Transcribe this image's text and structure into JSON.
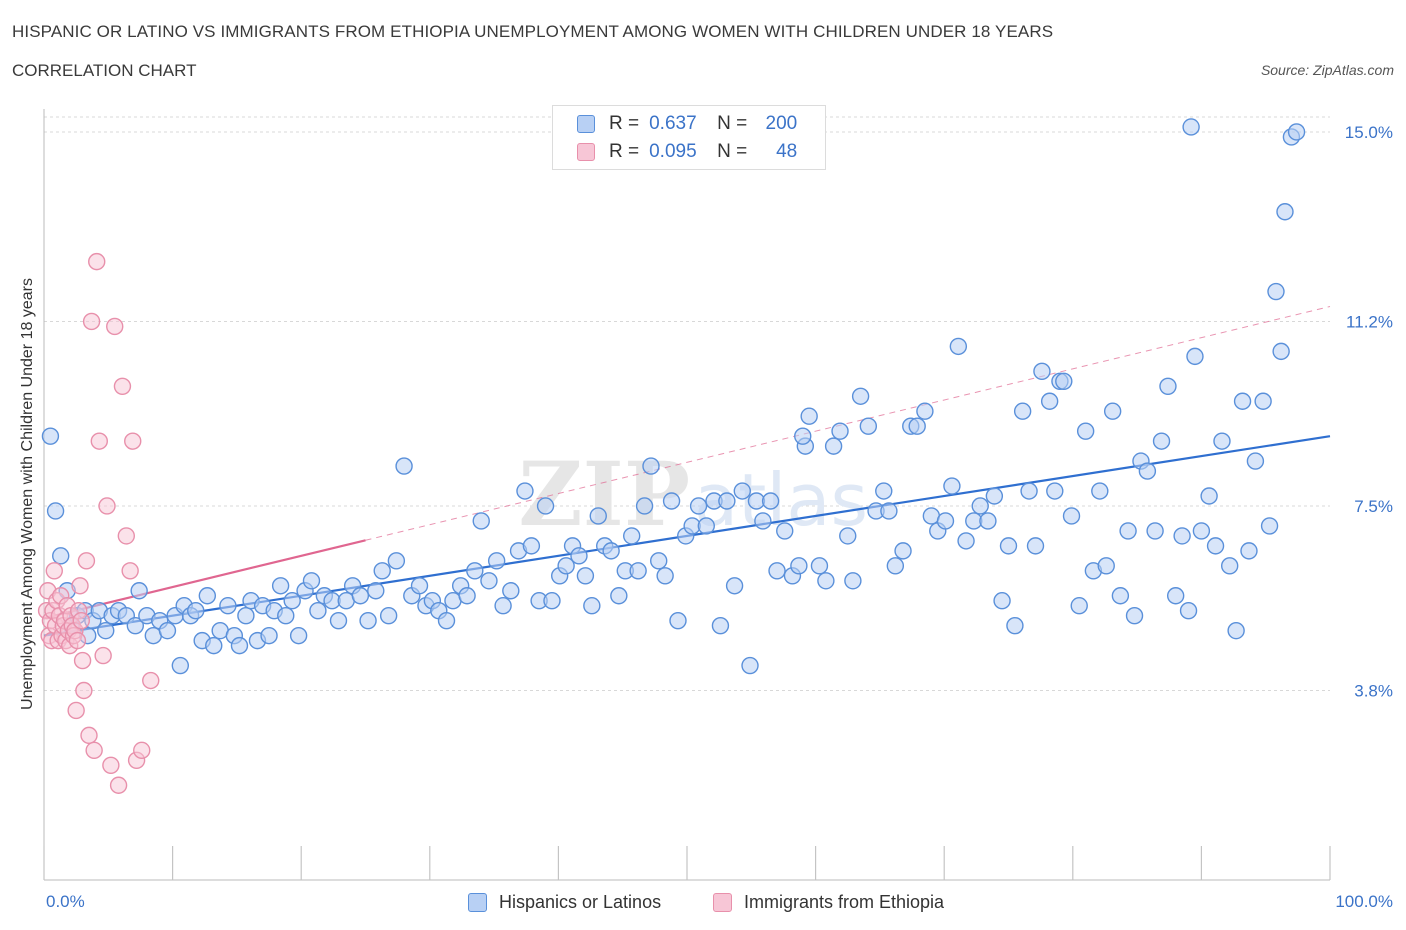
{
  "header": {
    "title": "HISPANIC OR LATINO VS IMMIGRANTS FROM ETHIOPIA UNEMPLOYMENT AMONG WOMEN WITH CHILDREN UNDER 18 YEARS",
    "subtitle": "CORRELATION CHART",
    "source": "Source: ZipAtlas.com"
  },
  "legend_top": {
    "rows": [
      {
        "r_label": "R =",
        "r_value": "0.637",
        "n_label": "N =",
        "n_value": "200"
      },
      {
        "r_label": "R =",
        "r_value": "0.095",
        "n_label": "N =",
        "n_value": "48"
      }
    ]
  },
  "legend_bottom": [
    "Hispanics or Latinos",
    "Immigrants from Ethiopia"
  ],
  "colors": {
    "blue_fill": "#b8d0f4",
    "blue_stroke": "#5a90da",
    "blue_line": "#2f6fd0",
    "pink_fill": "#f7c6d6",
    "pink_stroke": "#e890ab",
    "pink_line": "#e06690",
    "tick_text": "#3b73c8",
    "grid": "#d8d8d8"
  },
  "chart_data": {
    "type": "scatter",
    "title": "HISPANIC OR LATINO VS IMMIGRANTS FROM ETHIOPIA UNEMPLOYMENT AMONG WOMEN WITH CHILDREN UNDER 18 YEARS",
    "xlabel": "",
    "ylabel": "Unemployment Among Women with Children Under 18 years",
    "x_tick_labels": [
      "0.0%",
      "100.0%"
    ],
    "y_tick_labels": [
      "3.8%",
      "7.5%",
      "11.2%",
      "15.0%"
    ],
    "y_ticks": [
      3.8,
      7.5,
      11.2,
      15.0
    ],
    "xlim": [
      0,
      100
    ],
    "ylim": [
      0,
      15.3
    ],
    "grid": true,
    "legend_placement": "bottom-center",
    "watermark": "ZIPatlas",
    "series": [
      {
        "name": "Hispanics or Latinos",
        "R": 0.637,
        "N": 200,
        "trend": {
          "x0": 0,
          "y0": 4.9,
          "x1": 100,
          "y1": 8.9,
          "style": "solid"
        },
        "points": [
          [
            0.5,
            8.9
          ],
          [
            0.9,
            7.4
          ],
          [
            1.3,
            6.5
          ],
          [
            1.8,
            5.8
          ],
          [
            2.1,
            5.1
          ],
          [
            2.6,
            5.3
          ],
          [
            3.2,
            5.4
          ],
          [
            3.4,
            4.9
          ],
          [
            3.8,
            5.2
          ],
          [
            4.3,
            5.4
          ],
          [
            4.8,
            5.0
          ],
          [
            5.3,
            5.3
          ],
          [
            5.8,
            5.4
          ],
          [
            6.4,
            5.3
          ],
          [
            7.1,
            5.1
          ],
          [
            7.4,
            5.8
          ],
          [
            8.0,
            5.3
          ],
          [
            8.5,
            4.9
          ],
          [
            9.0,
            5.2
          ],
          [
            9.6,
            5.0
          ],
          [
            10.2,
            5.3
          ],
          [
            10.6,
            4.3
          ],
          [
            10.9,
            5.5
          ],
          [
            11.4,
            5.3
          ],
          [
            11.8,
            5.4
          ],
          [
            12.3,
            4.8
          ],
          [
            12.7,
            5.7
          ],
          [
            13.2,
            4.7
          ],
          [
            13.7,
            5.0
          ],
          [
            14.3,
            5.5
          ],
          [
            14.8,
            4.9
          ],
          [
            15.2,
            4.7
          ],
          [
            15.7,
            5.3
          ],
          [
            16.1,
            5.6
          ],
          [
            16.6,
            4.8
          ],
          [
            17.0,
            5.5
          ],
          [
            17.5,
            4.9
          ],
          [
            17.9,
            5.4
          ],
          [
            18.4,
            5.9
          ],
          [
            18.8,
            5.3
          ],
          [
            19.3,
            5.6
          ],
          [
            19.8,
            4.9
          ],
          [
            20.3,
            5.8
          ],
          [
            20.8,
            6.0
          ],
          [
            21.3,
            5.4
          ],
          [
            21.8,
            5.7
          ],
          [
            22.4,
            5.6
          ],
          [
            22.9,
            5.2
          ],
          [
            23.5,
            5.6
          ],
          [
            24.0,
            5.9
          ],
          [
            24.6,
            5.7
          ],
          [
            25.2,
            5.2
          ],
          [
            25.8,
            5.8
          ],
          [
            26.3,
            6.2
          ],
          [
            26.8,
            5.3
          ],
          [
            27.4,
            6.4
          ],
          [
            28.0,
            8.3
          ],
          [
            28.6,
            5.7
          ],
          [
            29.2,
            5.9
          ],
          [
            29.7,
            5.5
          ],
          [
            30.2,
            5.6
          ],
          [
            30.7,
            5.4
          ],
          [
            31.3,
            5.2
          ],
          [
            31.8,
            5.6
          ],
          [
            32.4,
            5.9
          ],
          [
            32.9,
            5.7
          ],
          [
            33.5,
            6.2
          ],
          [
            34.0,
            7.2
          ],
          [
            34.6,
            6.0
          ],
          [
            35.2,
            6.4
          ],
          [
            35.7,
            5.5
          ],
          [
            36.3,
            5.8
          ],
          [
            36.9,
            6.6
          ],
          [
            37.4,
            7.8
          ],
          [
            37.9,
            6.7
          ],
          [
            38.5,
            5.6
          ],
          [
            39.0,
            7.5
          ],
          [
            39.5,
            5.6
          ],
          [
            40.1,
            6.1
          ],
          [
            40.6,
            6.3
          ],
          [
            41.1,
            6.7
          ],
          [
            41.6,
            6.5
          ],
          [
            42.1,
            6.1
          ],
          [
            42.6,
            5.5
          ],
          [
            43.1,
            7.3
          ],
          [
            43.6,
            6.7
          ],
          [
            44.1,
            6.6
          ],
          [
            44.7,
            5.7
          ],
          [
            45.2,
            6.2
          ],
          [
            45.7,
            6.9
          ],
          [
            46.2,
            6.2
          ],
          [
            46.7,
            7.5
          ],
          [
            47.2,
            8.3
          ],
          [
            47.8,
            6.4
          ],
          [
            48.3,
            6.1
          ],
          [
            48.8,
            7.6
          ],
          [
            49.3,
            5.2
          ],
          [
            49.9,
            6.9
          ],
          [
            50.4,
            7.1
          ],
          [
            50.9,
            7.5
          ],
          [
            51.5,
            7.1
          ],
          [
            52.1,
            7.6
          ],
          [
            52.6,
            5.1
          ],
          [
            53.1,
            7.6
          ],
          [
            53.7,
            5.9
          ],
          [
            54.3,
            7.8
          ],
          [
            54.9,
            4.3
          ],
          [
            55.4,
            7.6
          ],
          [
            55.9,
            7.2
          ],
          [
            56.5,
            7.6
          ],
          [
            57.0,
            6.2
          ],
          [
            57.6,
            7.0
          ],
          [
            58.2,
            6.1
          ],
          [
            58.7,
            6.3
          ],
          [
            59.2,
            8.7
          ],
          [
            59.5,
            9.3
          ],
          [
            60.3,
            6.3
          ],
          [
            60.8,
            6.0
          ],
          [
            61.4,
            8.7
          ],
          [
            61.9,
            9.0
          ],
          [
            62.5,
            6.9
          ],
          [
            62.9,
            6.0
          ],
          [
            63.5,
            9.7
          ],
          [
            64.1,
            9.1
          ],
          [
            64.7,
            7.4
          ],
          [
            65.3,
            7.8
          ],
          [
            65.7,
            7.4
          ],
          [
            66.2,
            6.3
          ],
          [
            66.8,
            6.6
          ],
          [
            67.4,
            9.1
          ],
          [
            67.9,
            9.1
          ],
          [
            68.5,
            9.4
          ],
          [
            69.0,
            7.3
          ],
          [
            69.5,
            7.0
          ],
          [
            70.1,
            7.2
          ],
          [
            70.6,
            7.9
          ],
          [
            71.1,
            10.7
          ],
          [
            71.7,
            6.8
          ],
          [
            72.3,
            7.2
          ],
          [
            72.8,
            7.5
          ],
          [
            73.4,
            7.2
          ],
          [
            73.9,
            7.7
          ],
          [
            74.5,
            5.6
          ],
          [
            75.0,
            6.7
          ],
          [
            75.5,
            5.1
          ],
          [
            76.1,
            9.4
          ],
          [
            76.6,
            7.8
          ],
          [
            77.1,
            6.7
          ],
          [
            77.6,
            10.2
          ],
          [
            78.2,
            9.6
          ],
          [
            78.6,
            7.8
          ],
          [
            79.0,
            10.0
          ],
          [
            79.3,
            10.0
          ],
          [
            79.9,
            7.3
          ],
          [
            80.5,
            5.5
          ],
          [
            81.0,
            9.0
          ],
          [
            81.6,
            6.2
          ],
          [
            82.1,
            7.8
          ],
          [
            82.6,
            6.3
          ],
          [
            83.1,
            9.4
          ],
          [
            83.7,
            5.7
          ],
          [
            84.3,
            7.0
          ],
          [
            84.8,
            5.3
          ],
          [
            85.3,
            8.4
          ],
          [
            85.8,
            8.2
          ],
          [
            86.4,
            7.0
          ],
          [
            86.9,
            8.8
          ],
          [
            87.4,
            9.9
          ],
          [
            88.0,
            5.7
          ],
          [
            88.5,
            6.9
          ],
          [
            89.0,
            5.4
          ],
          [
            89.5,
            10.5
          ],
          [
            90.0,
            7.0
          ],
          [
            90.6,
            7.7
          ],
          [
            91.1,
            6.7
          ],
          [
            91.6,
            8.8
          ],
          [
            92.2,
            6.3
          ],
          [
            92.7,
            5.0
          ],
          [
            93.2,
            9.6
          ],
          [
            93.7,
            6.6
          ],
          [
            94.2,
            8.4
          ],
          [
            94.8,
            9.6
          ],
          [
            95.3,
            7.1
          ],
          [
            95.8,
            11.8
          ],
          [
            96.2,
            10.6
          ],
          [
            96.5,
            13.4
          ],
          [
            97.0,
            14.9
          ],
          [
            97.4,
            15.0
          ],
          [
            89.2,
            15.1
          ],
          [
            59.0,
            8.9
          ]
        ]
      },
      {
        "name": "Immigrants from Ethiopia",
        "R": 0.095,
        "N": 48,
        "trend": {
          "x0": 0,
          "y0": 5.25,
          "x1": 100,
          "y1": 11.5,
          "solid_until_x": 25
        },
        "points": [
          [
            0.2,
            5.4
          ],
          [
            0.3,
            5.8
          ],
          [
            0.4,
            4.9
          ],
          [
            0.5,
            5.2
          ],
          [
            0.6,
            4.8
          ],
          [
            0.7,
            5.4
          ],
          [
            0.8,
            6.2
          ],
          [
            0.9,
            5.1
          ],
          [
            1.0,
            5.6
          ],
          [
            1.1,
            4.8
          ],
          [
            1.2,
            5.3
          ],
          [
            1.3,
            5.7
          ],
          [
            1.4,
            4.9
          ],
          [
            1.5,
            5.1
          ],
          [
            1.6,
            5.2
          ],
          [
            1.7,
            4.8
          ],
          [
            1.8,
            5.5
          ],
          [
            1.9,
            5.0
          ],
          [
            2.0,
            4.7
          ],
          [
            2.1,
            5.3
          ],
          [
            2.2,
            5.1
          ],
          [
            2.3,
            4.9
          ],
          [
            2.4,
            5.0
          ],
          [
            2.5,
            3.4
          ],
          [
            2.6,
            4.8
          ],
          [
            2.7,
            5.4
          ],
          [
            2.8,
            5.9
          ],
          [
            2.9,
            5.2
          ],
          [
            3.0,
            4.4
          ],
          [
            3.1,
            3.8
          ],
          [
            3.3,
            6.4
          ],
          [
            3.5,
            2.9
          ],
          [
            3.7,
            11.2
          ],
          [
            3.9,
            2.6
          ],
          [
            4.1,
            12.4
          ],
          [
            4.3,
            8.8
          ],
          [
            4.6,
            4.5
          ],
          [
            4.9,
            7.5
          ],
          [
            5.2,
            2.3
          ],
          [
            5.5,
            11.1
          ],
          [
            5.8,
            1.9
          ],
          [
            6.1,
            9.9
          ],
          [
            6.4,
            6.9
          ],
          [
            6.7,
            6.2
          ],
          [
            6.9,
            8.8
          ],
          [
            7.2,
            2.4
          ],
          [
            7.6,
            2.6
          ],
          [
            8.3,
            4.0
          ]
        ]
      }
    ]
  }
}
